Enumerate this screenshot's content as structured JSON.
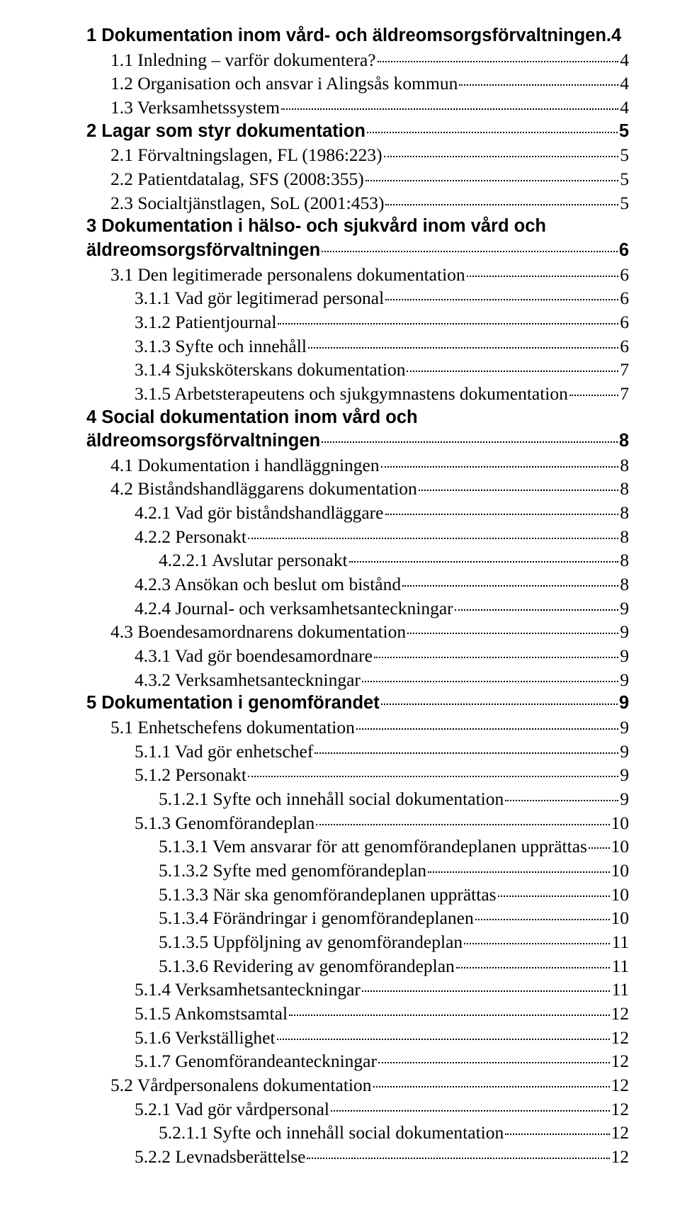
{
  "doc": {
    "background_color": "#ffffff",
    "text_color": "#000000",
    "fonts": {
      "bold_family": "Arial, Helvetica, sans-serif",
      "regular_family": "\"Times New Roman\", Times, serif",
      "font_size_pt": 19
    },
    "dot_leader_color": "#000000"
  },
  "toc": [
    {
      "level": 0,
      "style": "bold",
      "text": "1 Dokumentation inom vård- och äldreomsorgsförvaltningen.",
      "page": "4",
      "leader": false
    },
    {
      "level": 1,
      "style": "reg",
      "text": "1.1 Inledning – varför dokumentera?",
      "page": "4",
      "leader": true
    },
    {
      "level": 1,
      "style": "reg",
      "text": "1.2 Organisation och ansvar i Alingsås kommun",
      "page": "4",
      "leader": true
    },
    {
      "level": 1,
      "style": "reg",
      "text": "1.3 Verksamhetssystem",
      "page": "4",
      "leader": true
    },
    {
      "level": 0,
      "style": "bold",
      "text": "2 Lagar som styr dokumentation",
      "page": "5",
      "leader": true
    },
    {
      "level": 1,
      "style": "reg",
      "text": "2.1 Förvaltningslagen, FL (1986:223)",
      "page": "5",
      "leader": true
    },
    {
      "level": 1,
      "style": "reg",
      "text": "2.2 Patientdatalag, SFS (2008:355)",
      "page": "5",
      "leader": true
    },
    {
      "level": 1,
      "style": "reg",
      "text": "2.3 Socialtjänstlagen, SoL (2001:453)",
      "page": "5",
      "leader": true
    },
    {
      "level": 0,
      "style": "bold",
      "text": "3 Dokumentation i hälso- och sjukvård inom vård och äldreomsorgsförvaltningen",
      "page": "6",
      "leader": true,
      "wrap": true
    },
    {
      "level": 1,
      "style": "reg",
      "text": "3.1 Den legitimerade personalens dokumentation",
      "page": "6",
      "leader": true
    },
    {
      "level": 2,
      "style": "reg",
      "text": "3.1.1 Vad gör legitimerad personal",
      "page": "6",
      "leader": true
    },
    {
      "level": 2,
      "style": "reg",
      "text": "3.1.2 Patientjournal",
      "page": "6",
      "leader": true
    },
    {
      "level": 2,
      "style": "reg",
      "text": "3.1.3 Syfte och innehåll",
      "page": "6",
      "leader": true
    },
    {
      "level": 2,
      "style": "reg",
      "text": "3.1.4 Sjuksköterskans dokumentation",
      "page": "7",
      "leader": true
    },
    {
      "level": 2,
      "style": "reg",
      "text": "3.1.5 Arbetsterapeutens och sjukgymnastens dokumentation",
      "page": "7",
      "leader": true
    },
    {
      "level": 0,
      "style": "bold",
      "text": "4 Social dokumentation inom vård och äldreomsorgsförvaltningen",
      "page": "8",
      "leader": true,
      "wrap": true
    },
    {
      "level": 1,
      "style": "reg",
      "text": "4.1 Dokumentation i handläggningen",
      "page": "8",
      "leader": true
    },
    {
      "level": 1,
      "style": "reg",
      "text": "4.2 Biståndshandläggarens dokumentation",
      "page": "8",
      "leader": true
    },
    {
      "level": 2,
      "style": "reg",
      "text": "4.2.1 Vad gör biståndshandläggare",
      "page": "8",
      "leader": true
    },
    {
      "level": 2,
      "style": "reg",
      "text": "4.2.2 Personakt",
      "page": "8",
      "leader": true
    },
    {
      "level": 3,
      "style": "reg",
      "text": "4.2.2.1 Avslutar personakt",
      "page": "8",
      "leader": true
    },
    {
      "level": 2,
      "style": "reg",
      "text": "4.2.3 Ansökan och beslut om bistånd",
      "page": "8",
      "leader": true
    },
    {
      "level": 2,
      "style": "reg",
      "text": "4.2.4 Journal- och verksamhetsanteckningar",
      "page": "9",
      "leader": true
    },
    {
      "level": 1,
      "style": "reg",
      "text": "4.3 Boendesamordnarens dokumentation",
      "page": "9",
      "leader": true
    },
    {
      "level": 2,
      "style": "reg",
      "text": "4.3.1 Vad gör boendesamordnare",
      "page": "9",
      "leader": true
    },
    {
      "level": 2,
      "style": "reg",
      "text": "4.3.2 Verksamhetsanteckningar",
      "page": "9",
      "leader": true
    },
    {
      "level": 0,
      "style": "bold",
      "text": "5 Dokumentation i genomförandet ",
      "page": "9",
      "leader": true
    },
    {
      "level": 1,
      "style": "reg",
      "text": "5.1 Enhetschefens dokumentation",
      "page": "9",
      "leader": true
    },
    {
      "level": 2,
      "style": "reg",
      "text": "5.1.1 Vad gör enhetschef",
      "page": "9",
      "leader": true
    },
    {
      "level": 2,
      "style": "reg",
      "text": "5.1.2 Personakt",
      "page": "9",
      "leader": true
    },
    {
      "level": 3,
      "style": "reg",
      "text": "5.1.2.1 Syfte och innehåll social dokumentation",
      "page": "9",
      "leader": true
    },
    {
      "level": 2,
      "style": "reg",
      "text": "5.1.3 Genomförandeplan",
      "page": "10",
      "leader": true
    },
    {
      "level": 3,
      "style": "reg",
      "text": "5.1.3.1 Vem ansvarar för att genomförandeplanen upprättas",
      "page": "10",
      "leader": true
    },
    {
      "level": 3,
      "style": "reg",
      "text": "5.1.3.2 Syfte med genomförandeplan",
      "page": "10",
      "leader": true
    },
    {
      "level": 3,
      "style": "reg",
      "text": "5.1.3.3 När ska genomförandeplanen upprättas",
      "page": "10",
      "leader": true
    },
    {
      "level": 3,
      "style": "reg",
      "text": "5.1.3.4 Förändringar i genomförandeplanen ",
      "page": "10",
      "leader": true
    },
    {
      "level": 3,
      "style": "reg",
      "text": "5.1.3.5 Uppföljning av genomförandeplan",
      "page": "11",
      "leader": true
    },
    {
      "level": 3,
      "style": "reg",
      "text": "5.1.3.6 Revidering av genomförandeplan",
      "page": "11",
      "leader": true
    },
    {
      "level": 2,
      "style": "reg",
      "text": "5.1.4 Verksamhetsanteckningar",
      "page": "11",
      "leader": true
    },
    {
      "level": 2,
      "style": "reg",
      "text": "5.1.5 Ankomstsamtal",
      "page": "12",
      "leader": true
    },
    {
      "level": 2,
      "style": "reg",
      "text": "5.1.6 Verkställighet",
      "page": "12",
      "leader": true
    },
    {
      "level": 2,
      "style": "reg",
      "text": "5.1.7 Genomförandeanteckningar",
      "page": "12",
      "leader": true
    },
    {
      "level": 1,
      "style": "reg",
      "text": "5.2 Vårdpersonalens dokumentation",
      "page": "12",
      "leader": true
    },
    {
      "level": 2,
      "style": "reg",
      "text": "5.2.1 Vad gör vårdpersonal",
      "page": "12",
      "leader": true
    },
    {
      "level": 3,
      "style": "reg",
      "text": "5.2.1.1 Syfte och innehåll social dokumentation",
      "page": "12",
      "leader": true
    },
    {
      "level": 2,
      "style": "reg",
      "text": "5.2.2 Levnadsberättelse",
      "page": "12",
      "leader": true
    }
  ]
}
